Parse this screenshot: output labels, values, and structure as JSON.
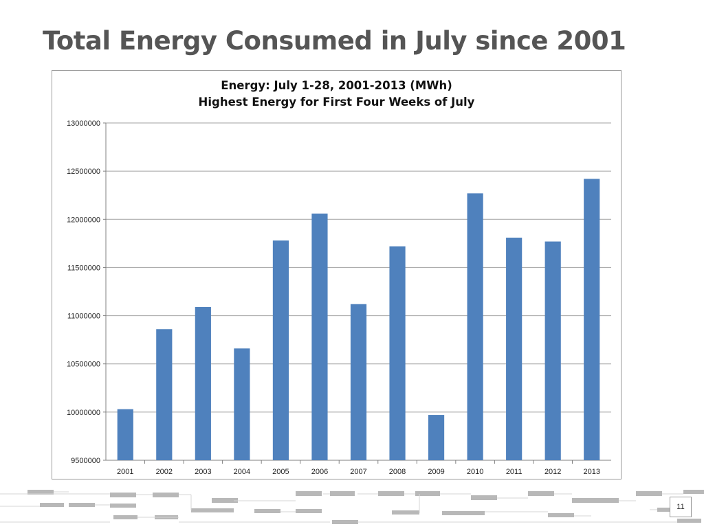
{
  "slide": {
    "title": "Total Energy Consumed in July since 2001",
    "page_number": "11"
  },
  "colors": {
    "bar": "#4f81bd",
    "gridline": "#a0a0a0",
    "title_text": "#555555",
    "footer_decor": "#b8b8b8"
  },
  "chart_data": {
    "type": "bar",
    "title": "Energy: July 1-28, 2001-2013 (MWh)",
    "subtitle": "Highest Energy for First Four Weeks of July",
    "categories": [
      "2001",
      "2002",
      "2003",
      "2004",
      "2005",
      "2006",
      "2007",
      "2008",
      "2009",
      "2010",
      "2011",
      "2012",
      "2013"
    ],
    "values": [
      10030000,
      10860000,
      11090000,
      10660000,
      11780000,
      12060000,
      11120000,
      11720000,
      9970000,
      12270000,
      11810000,
      11770000,
      12420000
    ],
    "ylim": [
      9500000,
      13000000
    ],
    "yticks": [
      "9500000",
      "10000000",
      "10500000",
      "11000000",
      "11500000",
      "12000000",
      "12500000",
      "13000000"
    ],
    "grid": true,
    "legend": "none"
  }
}
